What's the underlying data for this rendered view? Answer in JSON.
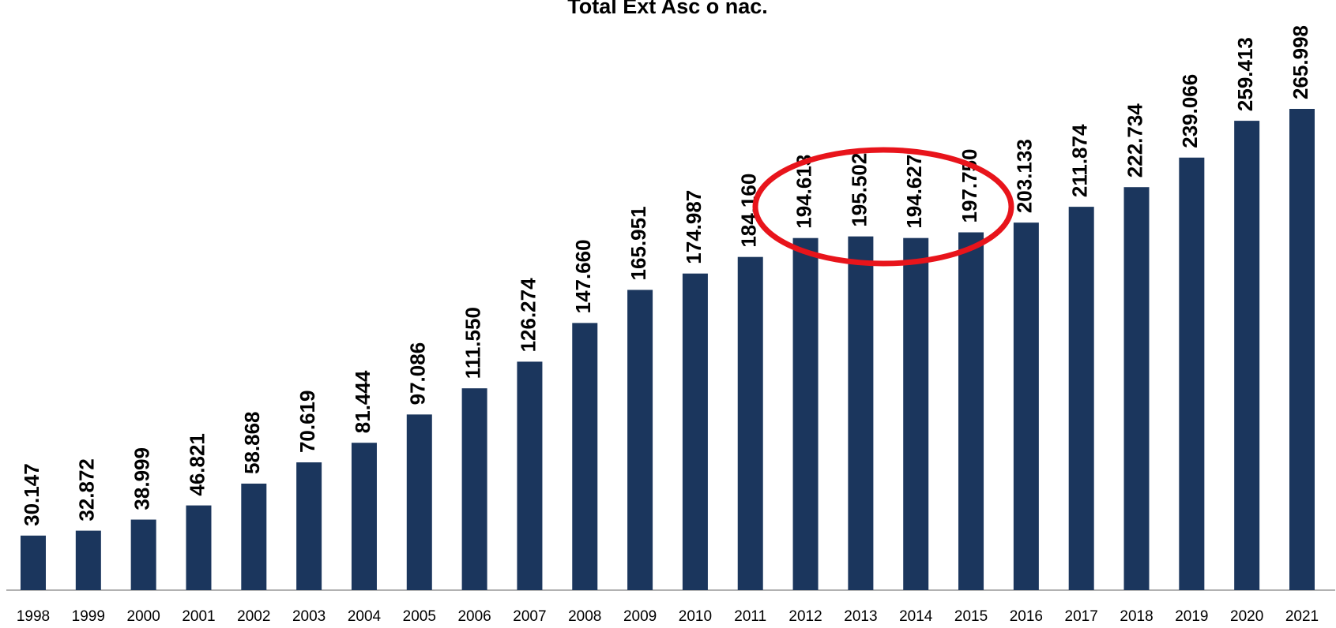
{
  "chart_data": {
    "type": "bar",
    "title": "Total Ext Asc o nac.",
    "categories": [
      "1998",
      "1999",
      "2000",
      "2001",
      "2002",
      "2003",
      "2004",
      "2005",
      "2006",
      "2007",
      "2008",
      "2009",
      "2010",
      "2011",
      "2012",
      "2013",
      "2014",
      "2015",
      "2016",
      "2017",
      "2018",
      "2019",
      "2020",
      "2021"
    ],
    "values": [
      30147,
      32872,
      38999,
      46821,
      58868,
      70619,
      81444,
      97086,
      111550,
      126274,
      147660,
      165951,
      174987,
      184160,
      194613,
      195502,
      194627,
      197750,
      203133,
      211874,
      222734,
      239066,
      259413,
      265998
    ],
    "value_labels": [
      "30.147",
      "32.872",
      "38.999",
      "46.821",
      "58.868",
      "70.619",
      "81.444",
      "97.086",
      "111.550",
      "126.274",
      "147.660",
      "165.951",
      "174.987",
      "184.160",
      "194.613",
      "195.502",
      "194.627",
      "197.750",
      "203.133",
      "211.874",
      "222.734",
      "239.066",
      "259.413",
      "265.998"
    ],
    "color": "#1b365d"
  }
}
